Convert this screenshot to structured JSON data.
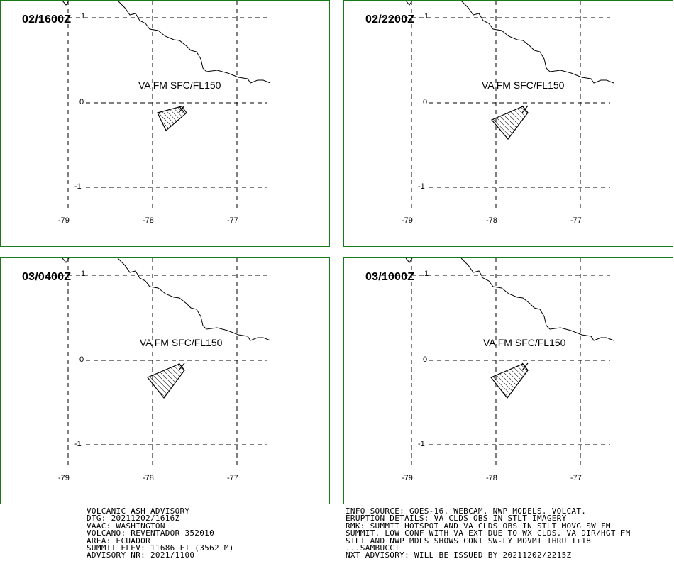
{
  "panels": [
    {
      "time": "02/1600Z",
      "level": "VA FM SFC/FL150"
    },
    {
      "time": "02/2200Z",
      "level": "VA FM SFC/FL150"
    },
    {
      "time": "03/0400Z",
      "level": "VA FM SFC/FL150"
    },
    {
      "time": "03/1000Z",
      "level": "VA FM SFC/FL150"
    }
  ],
  "axis": {
    "lat_labels": [
      "1",
      "0",
      "-1"
    ],
    "lon_labels": [
      "-79",
      "-78",
      "-77"
    ]
  },
  "advisory_left": [
    "VOLCANIC ASH ADVISORY",
    "DTG: 20211202/1616Z",
    "VAAC: WASHINGTON",
    "VOLCANO: REVENTADOR 352010",
    "AREA: ECUADOR",
    "SUMMIT ELEV: 11686 FT (3562 M)",
    "ADVISORY NR: 2021/1100"
  ],
  "advisory_right": [
    "INFO SOURCE: GOES-16. WEBCAM. NWP MODELS. VOLCAT.",
    "ERUPTION DETAILS: VA CLDS OBS IN STLT IMAGERY",
    "RMK: SUMMIT HOTSPOT AND VA CLDS OBS IN STLT MOVG SW FM",
    "SUMMIT. LOW CONF WITH VA EXT DUE TO WX CLDS. VA DIR/HGT FM",
    "STLT AND NWP MDLS SHOWS CONT SW-LY MOVMT THRU T+18",
    "...SAMBUCCI",
    "NXT ADVISORY: WILL BE ISSUED BY 20211202/2215Z"
  ],
  "colors": {
    "frame": "#1a7a1a",
    "lines": "#000000"
  }
}
